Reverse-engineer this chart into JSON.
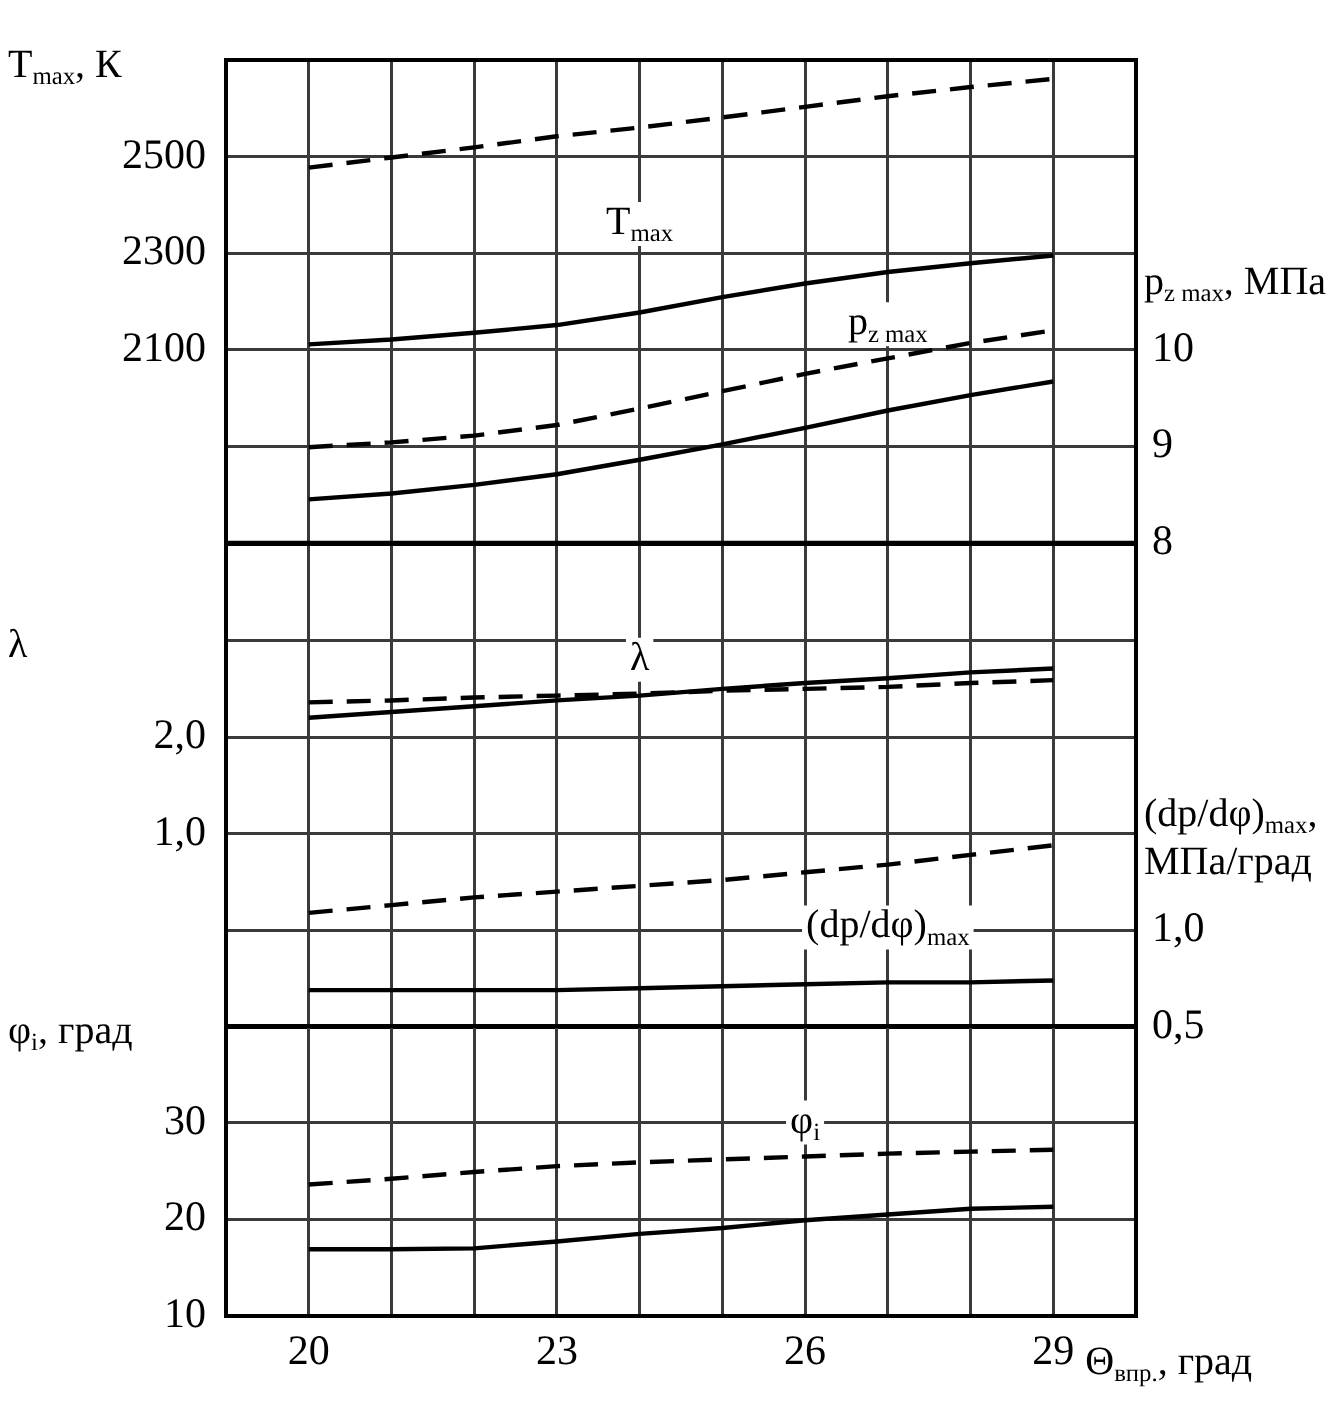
{
  "chart_data": [
    {
      "type": "line",
      "ylabel": "T$_{max}$, К",
      "y2label": "p$_{z max}$, МПа",
      "x": [
        20,
        21,
        22,
        23,
        24,
        25,
        26,
        27,
        28,
        29
      ],
      "series": [
        {
          "color": "#000000",
          "line_style": "dashed",
          "values": [
            2477,
            2498,
            2519,
            2542,
            2560,
            2581,
            2603,
            2625,
            2644,
            2661
          ]
        },
        {
          "color": "#000000",
          "line_style": "solid",
          "values": [
            2111,
            2121,
            2135,
            2151,
            2177,
            2209,
            2237,
            2261,
            2279,
            2295
          ]
        },
        {
          "color": "#000000",
          "line_style": "dashed",
          "axis": "y2",
          "values": [
            8.99,
            9.04,
            9.11,
            9.22,
            9.39,
            9.57,
            9.75,
            9.91,
            10.07,
            10.2
          ]
        },
        {
          "color": "#000000",
          "line_style": "solid",
          "axis": "y2",
          "values": [
            8.45,
            8.51,
            8.6,
            8.71,
            8.86,
            9.02,
            9.19,
            9.37,
            9.53,
            9.67
          ]
        }
      ],
      "xlim": [
        19,
        30
      ],
      "xticks": [
        {
          "value": 19,
          "label": null
        },
        20,
        {
          "value": 21,
          "label": null
        },
        {
          "value": 22,
          "label": null
        },
        23,
        {
          "value": 24,
          "label": null
        },
        {
          "value": 25,
          "label": null
        },
        26,
        {
          "value": 27,
          "label": null
        },
        {
          "value": 28,
          "label": null
        },
        29,
        {
          "value": 30,
          "label": null
        }
      ],
      "ylim": [
        1700,
        2700
      ],
      "yticks": [
        {
          "value": 1700,
          "label": null
        },
        {
          "value": 1900,
          "label": null
        },
        2100,
        2300,
        2500,
        {
          "value": 2700,
          "label": null
        }
      ],
      "y2lim": [
        8,
        13
      ],
      "y2ticks": [
        8,
        9,
        10
      ],
      "annotations": [
        "T$_{max}$",
        "p$_{z max}$"
      ],
      "grid": true,
      "marker": "none",
      "tick_labels": "y"
    },
    {
      "type": "line",
      "ylabel": "λ",
      "y2label": "(dp/dφ)$_{max}$, МПа/град",
      "x": [
        20,
        21,
        22,
        23,
        24,
        25,
        26,
        27,
        28,
        29
      ],
      "series": [
        {
          "color": "#000000",
          "line_style": "solid",
          "values": [
            2.2,
            2.26,
            2.32,
            2.38,
            2.43,
            2.5,
            2.56,
            2.61,
            2.67,
            2.71
          ]
        },
        {
          "color": "#000000",
          "line_style": "dashed",
          "values": [
            2.36,
            2.38,
            2.41,
            2.43,
            2.45,
            2.48,
            2.5,
            2.52,
            2.56,
            2.59
          ]
        },
        {
          "color": "#000000",
          "line_style": "dashed",
          "axis": "y2",
          "values": [
            1.09,
            1.13,
            1.17,
            1.2,
            1.23,
            1.26,
            1.3,
            1.34,
            1.39,
            1.44
          ]
        },
        {
          "color": "#000000",
          "line_style": "solid",
          "axis": "y2",
          "values": [
            0.69,
            0.69,
            0.69,
            0.69,
            0.7,
            0.71,
            0.72,
            0.73,
            0.73,
            0.74
          ]
        }
      ],
      "xlim": [
        19,
        30
      ],
      "xticks": [
        {
          "value": 19,
          "label": null
        },
        20,
        {
          "value": 21,
          "label": null
        },
        {
          "value": 22,
          "label": null
        },
        23,
        {
          "value": 24,
          "label": null
        },
        {
          "value": 25,
          "label": null
        },
        26,
        {
          "value": 27,
          "label": null
        },
        {
          "value": 28,
          "label": null
        },
        29,
        {
          "value": 30,
          "label": null
        }
      ],
      "ylim": [
        -1,
        4
      ],
      "yticks": [
        {
          "value": -1,
          "label": null
        },
        {
          "value": 0,
          "label": null
        },
        {
          "value": 1,
          "label": "1,0"
        },
        {
          "value": 2,
          "label": "2,0"
        },
        {
          "value": 3,
          "label": null
        },
        {
          "value": 4,
          "label": null
        }
      ],
      "y2lim": [
        0.5,
        3
      ],
      "y2ticks": [
        {
          "value": 0.5,
          "label": "0,5"
        },
        {
          "value": 1,
          "label": "1,0"
        }
      ],
      "annotations": [
        "λ",
        "(dp/dφ)$_{max}$"
      ],
      "grid": true,
      "marker": "none",
      "tick_labels": "y"
    },
    {
      "type": "line",
      "ylabel": "φ$_{i}$, град",
      "xlabel": "Θ$_{впр.}$, град",
      "x": [
        20,
        21,
        22,
        23,
        24,
        25,
        26,
        27,
        28,
        29
      ],
      "series": [
        {
          "color": "#000000",
          "line_style": "dashed",
          "values": [
            23.6,
            24.2,
            24.9,
            25.5,
            25.9,
            26.2,
            26.5,
            26.8,
            27.0,
            27.2
          ]
        },
        {
          "color": "#000000",
          "line_style": "solid",
          "values": [
            16.9,
            16.9,
            17.0,
            17.7,
            18.5,
            19.1,
            19.9,
            20.5,
            21.1,
            21.3
          ]
        }
      ],
      "xlim": [
        19,
        30
      ],
      "xticks": [
        {
          "value": 19,
          "label": null
        },
        20,
        {
          "value": 21,
          "label": null
        },
        {
          "value": 22,
          "label": null
        },
        23,
        {
          "value": 24,
          "label": null
        },
        {
          "value": 25,
          "label": null
        },
        26,
        {
          "value": 27,
          "label": null
        },
        {
          "value": 28,
          "label": null
        },
        29,
        {
          "value": 30,
          "label": null
        }
      ],
      "ylim": [
        10,
        40
      ],
      "yticks": [
        10,
        20,
        30,
        {
          "value": 40,
          "label": null
        }
      ],
      "annotations": [
        "φ$_{i}$"
      ],
      "grid": true,
      "marker": "none"
    }
  ]
}
